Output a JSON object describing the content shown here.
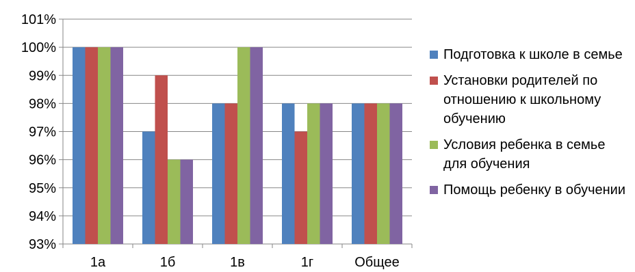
{
  "chart_data": {
    "type": "bar",
    "title": "",
    "xlabel": "",
    "ylabel": "",
    "categories": [
      "1а",
      "1б",
      "1в",
      "1г",
      "Общее"
    ],
    "series": [
      {
        "name": "Подготовка к школе в семье",
        "color": "#4F81BD",
        "values": [
          100,
          97,
          98,
          98,
          98
        ]
      },
      {
        "name": "Установки родителей по отношению к школьному обучению",
        "color": "#C0504D",
        "values": [
          100,
          99,
          98,
          97,
          98
        ]
      },
      {
        "name": "Условия ребенка в семье для обучения",
        "color": "#9BBB59",
        "values": [
          100,
          96,
          100,
          98,
          98
        ]
      },
      {
        "name": "Помощь ребенку в обучении",
        "color": "#8064A2",
        "values": [
          100,
          96,
          100,
          98,
          98
        ]
      }
    ],
    "ylim": [
      93,
      101
    ],
    "yticks": [
      "93%",
      "94%",
      "95%",
      "96%",
      "97%",
      "98%",
      "99%",
      "100%",
      "101%"
    ],
    "grid": true,
    "legend_position": "right"
  }
}
